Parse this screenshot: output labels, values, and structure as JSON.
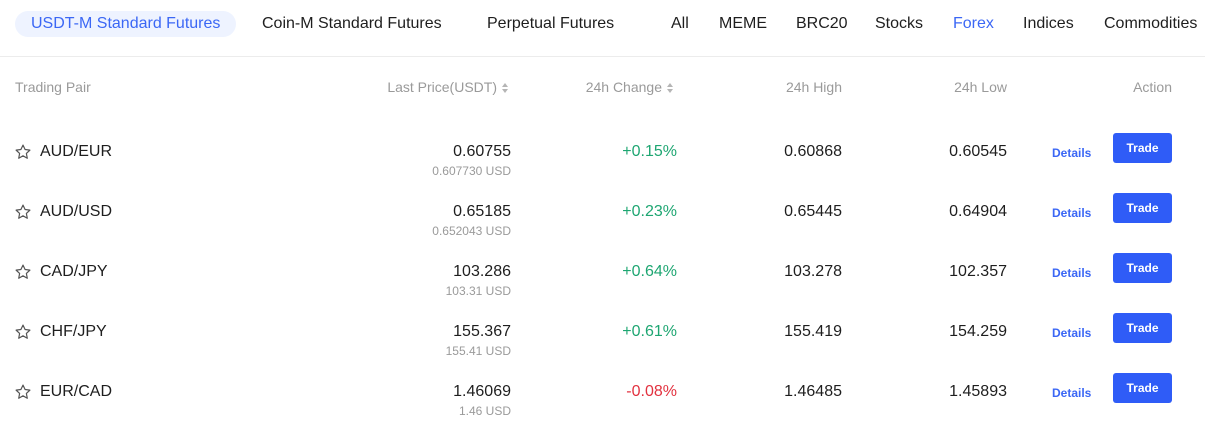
{
  "market_tabs": [
    {
      "label": "USDT-M Standard Futures",
      "active": true
    },
    {
      "label": "Coin-M Standard Futures",
      "active": false
    },
    {
      "label": "Perpetual Futures",
      "active": false
    }
  ],
  "category_tabs": [
    {
      "label": "All",
      "active": false
    },
    {
      "label": "MEME",
      "active": false
    },
    {
      "label": "BRC20",
      "active": false
    },
    {
      "label": "Stocks",
      "active": false
    },
    {
      "label": "Forex",
      "active": true
    },
    {
      "label": "Indices",
      "active": false
    },
    {
      "label": "Commodities",
      "active": false
    }
  ],
  "table": {
    "headers": {
      "pair": "Trading Pair",
      "last_price": "Last Price(USDT)",
      "change": "24h Change",
      "high": "24h High",
      "low": "24h Low",
      "action": "Action"
    },
    "details_label": "Details",
    "trade_label": "Trade",
    "rows": [
      {
        "pair": "AUD/EUR",
        "price": "0.60755",
        "usd": "0.607730 USD",
        "change": "+0.15%",
        "direction": "up",
        "high": "0.60868",
        "low": "0.60545"
      },
      {
        "pair": "AUD/USD",
        "price": "0.65185",
        "usd": "0.652043 USD",
        "change": "+0.23%",
        "direction": "up",
        "high": "0.65445",
        "low": "0.64904"
      },
      {
        "pair": "CAD/JPY",
        "price": "103.286",
        "usd": "103.31 USD",
        "change": "+0.64%",
        "direction": "up",
        "high": "103.278",
        "low": "102.357"
      },
      {
        "pair": "CHF/JPY",
        "price": "155.367",
        "usd": "155.41 USD",
        "change": "+0.61%",
        "direction": "up",
        "high": "155.419",
        "low": "154.259"
      },
      {
        "pair": "EUR/CAD",
        "price": "1.46069",
        "usd": "1.46 USD",
        "change": "-0.08%",
        "direction": "down",
        "high": "1.46485",
        "low": "1.45893"
      }
    ]
  },
  "colors": {
    "accent": "#3b67f5",
    "trade_button": "#2f5cf7",
    "positive": "#1ea672",
    "negative": "#e2313f",
    "muted": "#9a9a9a"
  },
  "icons": {
    "favorite": "star-outline-icon",
    "sort": "sort-arrows-icon"
  }
}
